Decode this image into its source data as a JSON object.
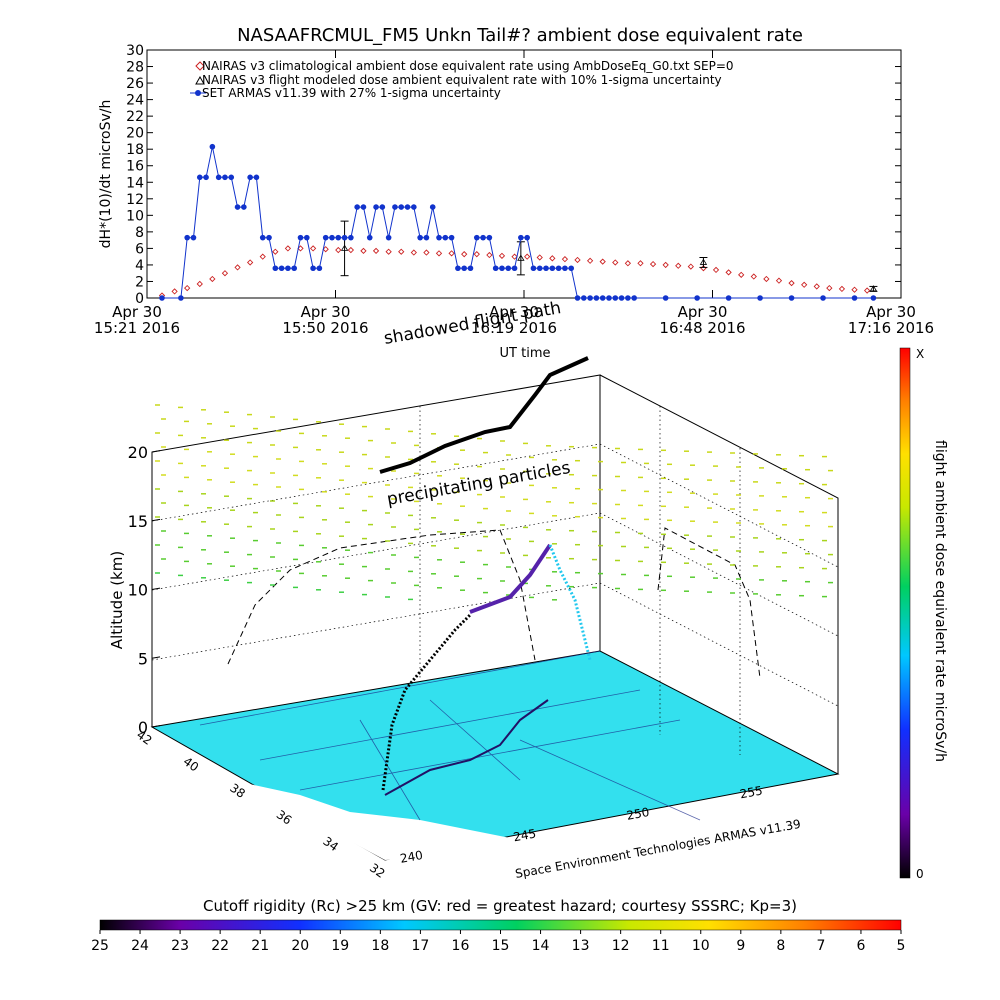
{
  "chart_data": [
    {
      "type": "line",
      "title": "NASAAFRCMUL_FM5 Unkn Tail#? ambient dose equivalent rate",
      "ylabel": "dH*(10)/dt microSv/h",
      "xlabel": "UT time",
      "ylim": [
        0,
        30
      ],
      "yticks": [
        "0",
        "2",
        "4",
        "6",
        "8",
        "10",
        "12",
        "14",
        "16",
        "18",
        "20",
        "22",
        "24",
        "26",
        "28",
        "30"
      ],
      "xticks": [
        {
          "top": "Apr 30",
          "bottom": "15:21 2016"
        },
        {
          "top": "Apr 30",
          "bottom": "15:50 2016"
        },
        {
          "top": "Apr 30",
          "bottom": "16:19 2016"
        },
        {
          "top": "Apr 30",
          "bottom": "16:48 2016"
        },
        {
          "top": "Apr 30",
          "bottom": "17:16 2016"
        }
      ],
      "xlim_minutes": [
        0,
        115
      ],
      "legend_position": "top-left",
      "series": [
        {
          "name": "NAIRAS v3 climatological ambient dose equivalent rate using AmbDoseEq_G0.txt SEP=0",
          "color": "#cc2222",
          "marker": "diamond",
          "x_minutes": [
            0,
            2,
            4,
            6,
            8,
            10,
            12,
            14,
            16,
            18,
            20,
            22,
            24,
            26,
            28,
            30,
            32,
            34,
            36,
            38,
            40,
            42,
            44,
            46,
            48,
            50,
            52,
            54,
            56,
            58,
            60,
            62,
            64,
            66,
            68,
            70,
            72,
            74,
            76,
            78,
            80,
            82,
            84,
            86,
            88,
            90,
            92,
            94,
            96,
            98,
            100,
            102,
            104,
            106,
            108,
            110,
            112
          ],
          "values": [
            0.3,
            0.8,
            1.2,
            1.7,
            2.3,
            3.0,
            3.7,
            4.3,
            5.0,
            5.6,
            6.0,
            6.0,
            6.0,
            5.9,
            5.8,
            5.8,
            5.7,
            5.7,
            5.6,
            5.6,
            5.5,
            5.5,
            5.4,
            5.4,
            5.3,
            5.3,
            5.2,
            5.1,
            5.0,
            5.0,
            4.9,
            4.8,
            4.7,
            4.6,
            4.5,
            4.4,
            4.3,
            4.2,
            4.2,
            4.1,
            4.0,
            3.9,
            3.8,
            3.6,
            3.4,
            3.1,
            2.8,
            2.6,
            2.3,
            2.1,
            1.8,
            1.6,
            1.4,
            1.2,
            1.1,
            1.0,
            0.9
          ]
        },
        {
          "name": "NAIRAS v3 flight modeled dose ambient equivalent rate with 10% 1-sigma uncertainty",
          "color": "#000000",
          "marker": "triangle",
          "points": [
            {
              "x_minutes": 29,
              "value": 6.0,
              "err": 3.3
            },
            {
              "x_minutes": 57,
              "value": 4.8,
              "err": 2.0
            },
            {
              "x_minutes": 86,
              "value": 4.3,
              "err": 0.6
            },
            {
              "x_minutes": 113,
              "value": 1.1,
              "err": 0.3
            }
          ]
        },
        {
          "name": "SET ARMAS v11.39 with 27% 1-sigma uncertainty",
          "color": "#1133cc",
          "marker": "circle",
          "x_minutes": [
            0,
            3,
            4,
            5,
            6,
            7,
            8,
            9,
            10,
            11,
            12,
            13,
            14,
            15,
            16,
            17,
            18,
            19,
            20,
            21,
            22,
            23,
            24,
            25,
            26,
            27,
            28,
            29,
            30,
            31,
            32,
            33,
            34,
            35,
            36,
            37,
            38,
            39,
            40,
            41,
            42,
            43,
            44,
            45,
            46,
            47,
            48,
            49,
            50,
            51,
            52,
            53,
            54,
            55,
            56,
            57,
            58,
            59,
            60,
            61,
            62,
            63,
            64,
            65,
            66,
            67,
            68,
            69,
            70,
            71,
            72,
            73,
            74,
            75,
            80,
            85,
            90,
            95,
            100,
            105,
            110,
            113
          ],
          "values": [
            0,
            0,
            7.3,
            7.3,
            14.6,
            14.6,
            18.3,
            14.6,
            14.6,
            14.6,
            11,
            11,
            14.6,
            14.6,
            7.3,
            7.3,
            3.6,
            3.6,
            3.6,
            3.6,
            7.3,
            7.3,
            3.6,
            3.6,
            7.3,
            7.3,
            7.3,
            7.3,
            7.3,
            11,
            11,
            7.3,
            11,
            11,
            7.3,
            11,
            11,
            11,
            11,
            7.3,
            7.3,
            11,
            7.3,
            7.3,
            7.3,
            3.6,
            3.6,
            3.6,
            7.3,
            7.3,
            7.3,
            3.6,
            3.6,
            3.6,
            3.6,
            7.3,
            7.3,
            3.6,
            3.6,
            3.6,
            3.6,
            3.6,
            3.6,
            3.6,
            0,
            0,
            0,
            0,
            0,
            0,
            0,
            0,
            0,
            0,
            0,
            0,
            0,
            0,
            0,
            0,
            0,
            0
          ]
        }
      ]
    },
    {
      "type": "3d-trajectory",
      "zlabel": "Altitude (km)",
      "zticks": [
        "0",
        "5",
        "10",
        "15",
        "20"
      ],
      "lat_ticks": [
        "42",
        "40",
        "38",
        "36",
        "34",
        "32"
      ],
      "lon_ticks": [
        "240",
        "245",
        "250",
        "255"
      ],
      "annotations": [
        "shadowed flight path",
        "precipitating particles"
      ],
      "credit": "Space Environment Technologies ARMAS v11.39",
      "colorbar_vertical": {
        "label": "flight ambient dose equivalent rate microSv/h",
        "top_label": "X",
        "bottom_label": "0"
      },
      "colorbar_horizontal": {
        "label": "Cutoff rigidity (Rc) >25 km (GV: red = greatest hazard; courtesy SSSRC; Kp=3)",
        "ticks": [
          "25",
          "24",
          "23",
          "22",
          "21",
          "20",
          "19",
          "18",
          "17",
          "16",
          "15",
          "14",
          "13",
          "12",
          "11",
          "10",
          "9",
          "8",
          "7",
          "6",
          "5"
        ]
      }
    }
  ]
}
